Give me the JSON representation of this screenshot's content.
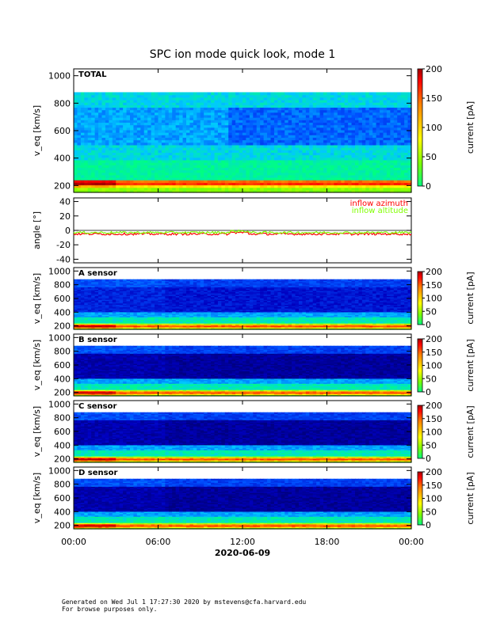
{
  "title": "SPC ion mode quick look, mode 1",
  "date_label": "2020-06-09",
  "x_ticks": [
    "00:00",
    "06:00",
    "12:00",
    "18:00",
    "00:00"
  ],
  "footer": {
    "line1": "Generated on Wed Jul  1 17:27:30 2020 by mstevens@cfa.harvard.edu",
    "line2": "For browse purposes only."
  },
  "colors": {
    "colormap": [
      "#000060",
      "#0000c0",
      "#0050ff",
      "#00c8ff",
      "#00ff80",
      "#80ff00",
      "#ffff00",
      "#ff8000",
      "#ff0000",
      "#a00000"
    ],
    "azimuth": "#ff0000",
    "altitude": "#80ff00"
  },
  "chart_data": [
    {
      "type": "heatmap",
      "panel": "total",
      "label": "TOTAL",
      "ylabel": "v_eq [km/s]",
      "yticks": [
        200,
        400,
        600,
        800,
        1000
      ],
      "ylim": [
        150,
        1050
      ],
      "xlim": [
        "00:00",
        "24:00"
      ],
      "colorbar": {
        "label": "current [pA]",
        "ticks": [
          0,
          50,
          100,
          150,
          200
        ],
        "range": [
          0,
          200
        ]
      },
      "data_top": 880,
      "description_of_features": {
        "proton_peak_km_s": 220,
        "core_level_pA": 45,
        "background_level_pA": 60
      }
    },
    {
      "type": "line",
      "panel": "angle",
      "ylabel": "angle [°]",
      "yticks": [
        -40,
        -20,
        0,
        20,
        40
      ],
      "ylim": [
        -45,
        45
      ],
      "series": [
        {
          "name": "inflow azimuth",
          "mean": -5,
          "color": "#ff0000"
        },
        {
          "name": "inflow altitude",
          "mean": -3,
          "color": "#80ff00"
        }
      ]
    },
    {
      "type": "heatmap",
      "panel": "A",
      "label": "A sensor",
      "ylabel": "v_eq [km/s]",
      "yticks": [
        200,
        400,
        600,
        800,
        1000
      ],
      "ylim": [
        150,
        1050
      ],
      "colorbar": {
        "label": "current [pA]",
        "ticks": [
          0,
          50,
          100,
          150,
          200
        ],
        "range": [
          0,
          200
        ]
      },
      "data_top": 880
    },
    {
      "type": "heatmap",
      "panel": "B",
      "label": "B sensor",
      "ylabel": "v_eq [km/s]",
      "yticks": [
        200,
        400,
        600,
        800,
        1000
      ],
      "ylim": [
        150,
        1050
      ],
      "colorbar": {
        "label": "current [pA]",
        "ticks": [
          0,
          50,
          100,
          150,
          200
        ],
        "range": [
          0,
          200
        ]
      },
      "data_top": 880
    },
    {
      "type": "heatmap",
      "panel": "C",
      "label": "C sensor",
      "ylabel": "v_eq [km/s]",
      "yticks": [
        200,
        400,
        600,
        800,
        1000
      ],
      "ylim": [
        150,
        1050
      ],
      "colorbar": {
        "label": "current [pA]",
        "ticks": [
          0,
          50,
          100,
          150,
          200
        ],
        "range": [
          0,
          200
        ]
      },
      "data_top": 880
    },
    {
      "type": "heatmap",
      "panel": "D",
      "label": "D sensor",
      "ylabel": "v_eq [km/s]",
      "yticks": [
        200,
        400,
        600,
        800,
        1000
      ],
      "ylim": [
        150,
        1050
      ],
      "colorbar": {
        "label": "current [pA]",
        "ticks": [
          0,
          50,
          100,
          150,
          200
        ],
        "range": [
          0,
          200
        ]
      },
      "data_top": 880
    }
  ]
}
